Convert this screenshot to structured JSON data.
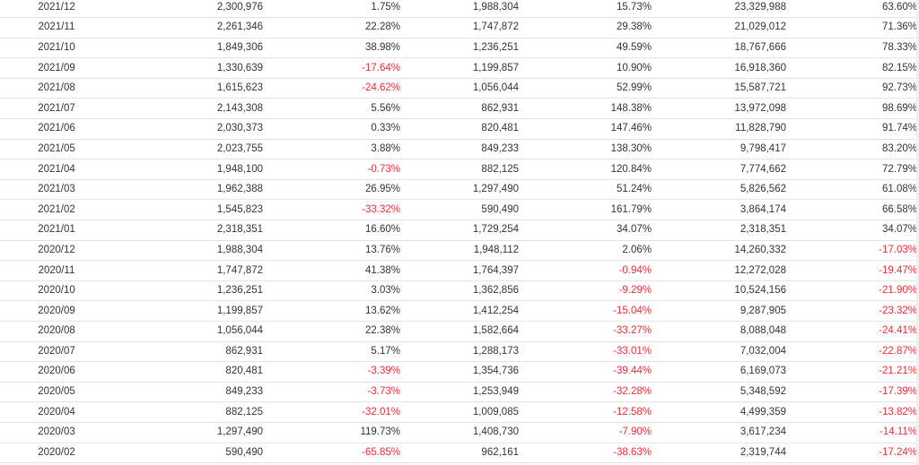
{
  "table": {
    "rows": [
      {
        "date": "2021/12",
        "v1": "2,300,976",
        "p1": "1.75%",
        "v2": "1,988,304",
        "p2": "15.73%",
        "v3": "23,329,988",
        "p3": "63.60%"
      },
      {
        "date": "2021/11",
        "v1": "2,261,346",
        "p1": "22.28%",
        "v2": "1,747,872",
        "p2": "29.38%",
        "v3": "21,029,012",
        "p3": "71.36%"
      },
      {
        "date": "2021/10",
        "v1": "1,849,306",
        "p1": "38.98%",
        "v2": "1,236,251",
        "p2": "49.59%",
        "v3": "18,767,666",
        "p3": "78.33%"
      },
      {
        "date": "2021/09",
        "v1": "1,330,639",
        "p1": "-17.64%",
        "v2": "1,199,857",
        "p2": "10.90%",
        "v3": "16,918,360",
        "p3": "82.15%"
      },
      {
        "date": "2021/08",
        "v1": "1,615,623",
        "p1": "-24.62%",
        "v2": "1,056,044",
        "p2": "52.99%",
        "v3": "15,587,721",
        "p3": "92.73%"
      },
      {
        "date": "2021/07",
        "v1": "2,143,308",
        "p1": "5.56%",
        "v2": "862,931",
        "p2": "148.38%",
        "v3": "13,972,098",
        "p3": "98.69%"
      },
      {
        "date": "2021/06",
        "v1": "2,030,373",
        "p1": "0.33%",
        "v2": "820,481",
        "p2": "147.46%",
        "v3": "11,828,790",
        "p3": "91.74%"
      },
      {
        "date": "2021/05",
        "v1": "2,023,755",
        "p1": "3.88%",
        "v2": "849,233",
        "p2": "138.30%",
        "v3": "9,798,417",
        "p3": "83.20%"
      },
      {
        "date": "2021/04",
        "v1": "1,948,100",
        "p1": "-0.73%",
        "v2": "882,125",
        "p2": "120.84%",
        "v3": "7,774,662",
        "p3": "72.79%"
      },
      {
        "date": "2021/03",
        "v1": "1,962,388",
        "p1": "26.95%",
        "v2": "1,297,490",
        "p2": "51.24%",
        "v3": "5,826,562",
        "p3": "61.08%"
      },
      {
        "date": "2021/02",
        "v1": "1,545,823",
        "p1": "-33.32%",
        "v2": "590,490",
        "p2": "161.79%",
        "v3": "3,864,174",
        "p3": "66.58%"
      },
      {
        "date": "2021/01",
        "v1": "2,318,351",
        "p1": "16.60%",
        "v2": "1,729,254",
        "p2": "34.07%",
        "v3": "2,318,351",
        "p3": "34.07%"
      },
      {
        "date": "2020/12",
        "v1": "1,988,304",
        "p1": "13.76%",
        "v2": "1,948,112",
        "p2": "2.06%",
        "v3": "14,260,332",
        "p3": "-17.03%"
      },
      {
        "date": "2020/11",
        "v1": "1,747,872",
        "p1": "41.38%",
        "v2": "1,764,397",
        "p2": "-0.94%",
        "v3": "12,272,028",
        "p3": "-19.47%"
      },
      {
        "date": "2020/10",
        "v1": "1,236,251",
        "p1": "3.03%",
        "v2": "1,362,856",
        "p2": "-9.29%",
        "v3": "10,524,156",
        "p3": "-21.90%"
      },
      {
        "date": "2020/09",
        "v1": "1,199,857",
        "p1": "13.62%",
        "v2": "1,412,254",
        "p2": "-15.04%",
        "v3": "9,287,905",
        "p3": "-23.32%"
      },
      {
        "date": "2020/08",
        "v1": "1,056,044",
        "p1": "22.38%",
        "v2": "1,582,664",
        "p2": "-33.27%",
        "v3": "8,088,048",
        "p3": "-24.41%"
      },
      {
        "date": "2020/07",
        "v1": "862,931",
        "p1": "5.17%",
        "v2": "1,288,173",
        "p2": "-33.01%",
        "v3": "7,032,004",
        "p3": "-22.87%"
      },
      {
        "date": "2020/06",
        "v1": "820,481",
        "p1": "-3.39%",
        "v2": "1,354,736",
        "p2": "-39.44%",
        "v3": "6,169,073",
        "p3": "-21.21%"
      },
      {
        "date": "2020/05",
        "v1": "849,233",
        "p1": "-3.73%",
        "v2": "1,253,949",
        "p2": "-32.28%",
        "v3": "5,348,592",
        "p3": "-17.39%"
      },
      {
        "date": "2020/04",
        "v1": "882,125",
        "p1": "-32.01%",
        "v2": "1,009,085",
        "p2": "-12.58%",
        "v3": "4,499,359",
        "p3": "-13.82%"
      },
      {
        "date": "2020/03",
        "v1": "1,297,490",
        "p1": "119.73%",
        "v2": "1,408,730",
        "p2": "-7.90%",
        "v3": "3,617,234",
        "p3": "-14.11%"
      },
      {
        "date": "2020/02",
        "v1": "590,490",
        "p1": "-65.85%",
        "v2": "962,161",
        "p2": "-38.63%",
        "v3": "2,319,744",
        "p3": "-17.24%"
      }
    ]
  },
  "colors": {
    "negative": "#e8303a",
    "text": "#333333",
    "row_border": "#e4e4e4"
  }
}
